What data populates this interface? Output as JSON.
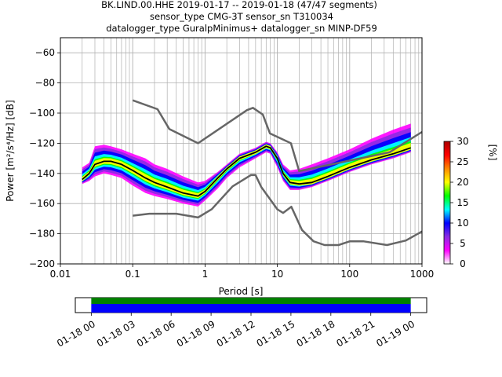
{
  "chart_data": [
    {
      "type": "heatmap",
      "title_lines": [
        "BK.LIND.00.HHE   2019-01-17 -- 2019-01-18  (47/47 segments)",
        "sensor_type CMG-3T sensor_sn T310034",
        "datalogger_type GuralpMinimus+ datalogger_sn MINP-DF59"
      ],
      "xlabel": "Period [s]",
      "ylabel": "Power [m²/s⁴/Hz] [dB]",
      "xscale": "log",
      "xlim": [
        0.01,
        1000
      ],
      "ylim": [
        -200,
        -50
      ],
      "xticks": [
        {
          "v": 0.01,
          "label": "0.01"
        },
        {
          "v": 0.1,
          "label": "0.1"
        },
        {
          "v": 1,
          "label": "1"
        },
        {
          "v": 10,
          "label": "10"
        },
        {
          "v": 100,
          "label": "100"
        },
        {
          "v": 1000,
          "label": "1000"
        }
      ],
      "yticks": [
        {
          "v": -60,
          "label": "−60"
        },
        {
          "v": -80,
          "label": "−80"
        },
        {
          "v": -100,
          "label": "−100"
        },
        {
          "v": -120,
          "label": "−120"
        },
        {
          "v": -140,
          "label": "−140"
        },
        {
          "v": -160,
          "label": "−160"
        },
        {
          "v": -180,
          "label": "−180"
        },
        {
          "v": -200,
          "label": "−200"
        }
      ],
      "grid": true,
      "colorbar": {
        "label": "[%]",
        "range": [
          0,
          30
        ],
        "ticks": [
          {
            "v": 0,
            "label": "0"
          },
          {
            "v": 5,
            "label": "5"
          },
          {
            "v": 10,
            "label": "10"
          },
          {
            "v": 15,
            "label": "15"
          },
          {
            "v": 20,
            "label": "20"
          },
          {
            "v": 25,
            "label": "25"
          },
          {
            "v": 30,
            "label": "30"
          }
        ],
        "colors": [
          "#ffffff",
          "#ff00ff",
          "#8a2be2",
          "#0000ff",
          "#00ffff",
          "#00ff00",
          "#ffff00",
          "#ff8800",
          "#ff0000",
          "#aa0000"
        ]
      },
      "nhnm": {
        "name": "NHNM",
        "color": "#666666",
        "x": [
          0.1,
          0.22,
          0.32,
          0.8,
          3.8,
          4.6,
          6.3,
          7.9,
          15.4,
          20,
          354.8,
          1000
        ],
        "y": [
          -91.5,
          -97.4,
          -110.5,
          -120,
          -98,
          -96.5,
          -101,
          -113.5,
          -120,
          -138.5,
          -126,
          -112.5
        ]
      },
      "nlnm": {
        "name": "NLNM",
        "color": "#666666",
        "x": [
          0.1,
          0.17,
          0.4,
          0.8,
          1.24,
          2.4,
          4.3,
          5,
          6,
          10,
          12,
          15.6,
          21.9,
          31.6,
          45,
          70,
          101,
          154,
          328,
          600,
          1000
        ],
        "y": [
          -168,
          -166.7,
          -166.7,
          -169.2,
          -163.7,
          -148.6,
          -141.1,
          -141.1,
          -149,
          -163.8,
          -166.2,
          -162.1,
          -177.5,
          -185,
          -187.5,
          -187.5,
          -185,
          -185,
          -187.5,
          -184.5,
          -178.5
        ]
      },
      "mode_curve": {
        "name": "mode",
        "color": "#000000",
        "x": [
          0.02,
          0.025,
          0.03,
          0.04,
          0.05,
          0.07,
          0.1,
          0.15,
          0.2,
          0.3,
          0.5,
          0.8,
          1.0,
          1.5,
          2,
          3,
          5,
          7,
          8,
          10,
          12,
          15,
          20,
          30,
          50,
          100,
          200,
          400,
          700
        ],
        "y": [
          -144,
          -140,
          -134,
          -132,
          -132,
          -134,
          -138,
          -143,
          -146,
          -149,
          -153,
          -155,
          -152,
          -143,
          -137,
          -130,
          -126,
          -122,
          -123,
          -130,
          -140,
          -146,
          -147,
          -146,
          -142,
          -136,
          -131,
          -127,
          -123
        ]
      },
      "density_band": {
        "description_free": true,
        "x": [
          0.02,
          0.025,
          0.03,
          0.04,
          0.05,
          0.07,
          0.1,
          0.15,
          0.2,
          0.3,
          0.5,
          0.8,
          1.0,
          1.5,
          2,
          3,
          5,
          7,
          8,
          10,
          12,
          15,
          20,
          30,
          50,
          100,
          200,
          400,
          700
        ],
        "upper": [
          -136,
          -133,
          -122,
          -121,
          -122,
          -124,
          -127,
          -130,
          -134,
          -137,
          -142,
          -146,
          -145,
          -139,
          -134,
          -127,
          -123,
          -119,
          -120,
          -126,
          -134,
          -138,
          -137,
          -134,
          -130,
          -124,
          -117,
          -111,
          -107
        ],
        "lower": [
          -147,
          -145,
          -142,
          -140,
          -141,
          -143,
          -148,
          -153,
          -155,
          -157,
          -160,
          -162,
          -158,
          -150,
          -143,
          -136,
          -130,
          -126,
          -127,
          -136,
          -145,
          -151,
          -151,
          -149,
          -145,
          -139,
          -134,
          -130,
          -126
        ]
      }
    },
    {
      "type": "table",
      "name": "time-coverage",
      "xticks": [
        {
          "v": 0,
          "label": "01-18 00"
        },
        {
          "v": 3,
          "label": "01-18 03"
        },
        {
          "v": 6,
          "label": "01-18 06"
        },
        {
          "v": 9,
          "label": "01-18 09"
        },
        {
          "v": 12,
          "label": "01-18 12"
        },
        {
          "v": 15,
          "label": "01-18 15"
        },
        {
          "v": 18,
          "label": "01-18 18"
        },
        {
          "v": 21,
          "label": "01-18 21"
        },
        {
          "v": 24,
          "label": "01-19 00"
        }
      ],
      "xlim_hours": [
        -1.2,
        25.2
      ],
      "coverage_hours": [
        0,
        24
      ],
      "bar_colors": [
        "#008000",
        "#0000ff"
      ]
    }
  ]
}
